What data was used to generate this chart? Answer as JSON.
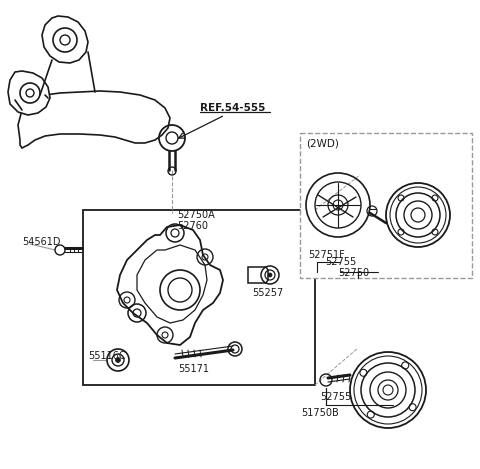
{
  "bg_color": "#ffffff",
  "line_color": "#1a1a1a",
  "gray_color": "#999999",
  "labels": {
    "ref": "REF.54-555",
    "part_54561D": "54561D",
    "part_52750A": "52750A",
    "part_52760": "52760",
    "part_55257": "55257",
    "part_55116C": "55116C",
    "part_55171": "55171",
    "part_2WD": "(2WD)",
    "part_52751F": "52751F",
    "part_52755_top": "52755",
    "part_52750_2wd": "52750",
    "part_52755_bot": "52755",
    "part_51750B": "51750B"
  },
  "figsize": [
    4.8,
    4.69
  ],
  "dpi": 100
}
